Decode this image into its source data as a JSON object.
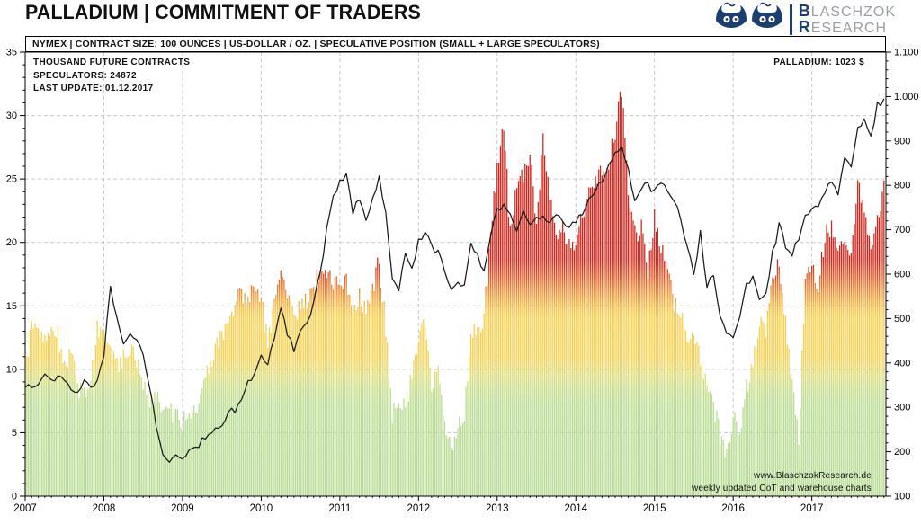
{
  "title": "PALLADIUM | COMMITMENT OF TRADERS",
  "logo": {
    "line1_initial": "B",
    "line1_rest": "LASCHZOK",
    "line2_initial": "R",
    "line2_rest": "ESEARCH"
  },
  "subheader": "NYMEX | CONTRACT SIZE: 100 OUNCES | US-DOLLAR / OZ. | SPECULATIVE POSITION (SMALL + LARGE SPECULATORS)",
  "annotations": {
    "units_label": "THOUSAND FUTURE CONTRACTS",
    "speculators_label": "SPECULATORS: 24872",
    "last_update_label": "LAST UPDATE: 01.12.2017",
    "price_label": "PALLADIUM: 1023 $",
    "website": "www.BlaschzokResearch.de",
    "update_note": "weekly updated CoT and warehouse charts"
  },
  "chart_data": {
    "type": "bar+line combo (weekly CoT chart, values below are approximate monthly readings Jan 2007 - Dec 2017)",
    "title": "PALLADIUM | COMMITMENT OF TRADERS",
    "x_range": [
      "2007-01",
      "2017-12"
    ],
    "x_tick_years": [
      "2007",
      "2008",
      "2009",
      "2010",
      "2011",
      "2012",
      "2013",
      "2014",
      "2015",
      "2016",
      "2017"
    ],
    "left_axis": {
      "label": "THOUSAND FUTURE CONTRACTS",
      "min": 0,
      "max": 35,
      "major_ticks": [
        0,
        5,
        10,
        15,
        20,
        25,
        30,
        35
      ]
    },
    "right_axis": {
      "label": "US-DOLLAR / OZ.",
      "min": 100,
      "max": 1100,
      "tick_labels": [
        "100",
        "200",
        "300",
        "400",
        "500",
        "600",
        "700",
        "800",
        "900",
        "1.000",
        "1.100"
      ]
    },
    "grid": {
      "horizontal_every": 5,
      "vertical": "yearly",
      "style": "dashed"
    },
    "legend_position": "none",
    "latest": {
      "speculators_contracts": 24872,
      "palladium_usd": 1023
    },
    "series": [
      {
        "name": "Speculative position (small + large speculators)",
        "type": "bar",
        "unit": "thousand future contracts",
        "monthly_values": [
          9.0,
          13.8,
          13.2,
          12.4,
          13.4,
          12.6,
          10.2,
          11.4,
          8.8,
          7.8,
          9.5,
          13.2,
          13.6,
          12.2,
          10.4,
          10.8,
          11.8,
          10.4,
          9.2,
          7.6,
          8.4,
          7.0,
          6.4,
          6.8,
          5.8,
          6.4,
          7.0,
          8.2,
          10.0,
          11.6,
          12.8,
          13.6,
          15.4,
          15.8,
          15.6,
          16.0,
          15.2,
          12.2,
          15.0,
          18.0,
          16.2,
          14.4,
          14.8,
          15.4,
          16.4,
          17.8,
          17.4,
          17.0,
          16.6,
          17.2,
          14.8,
          15.6,
          14.2,
          16.0,
          18.6,
          13.2,
          6.4,
          7.6,
          6.8,
          9.6,
          12.8,
          13.4,
          8.8,
          10.2,
          5.4,
          3.6,
          5.4,
          6.6,
          13.0,
          12.6,
          14.2,
          20.4,
          26.0,
          29.4,
          20.6,
          24.4,
          25.2,
          26.8,
          21.4,
          28.2,
          23.6,
          20.2,
          21.4,
          19.6,
          20.4,
          22.4,
          24.0,
          24.6,
          25.4,
          26.4,
          28.8,
          32.0,
          23.8,
          20.6,
          21.2,
          17.6,
          22.0,
          19.4,
          17.8,
          15.0,
          14.4,
          12.4,
          13.0,
          10.6,
          9.2,
          7.4,
          4.6,
          3.6,
          6.4,
          4.4,
          8.6,
          10.4,
          14.0,
          13.2,
          16.8,
          18.8,
          13.4,
          9.0,
          4.8,
          16.6,
          18.2,
          16.6,
          20.6,
          21.4,
          18.8,
          20.2,
          18.6,
          25.2,
          22.4,
          19.4,
          21.6,
          24.872
        ]
      },
      {
        "name": "Palladium price",
        "type": "line",
        "unit": "USD/oz",
        "monthly_values": [
          345,
          352,
          356,
          368,
          362,
          370,
          366,
          332,
          342,
          360,
          352,
          358,
          420,
          575,
          500,
          445,
          462,
          452,
          420,
          340,
          260,
          200,
          178,
          188,
          192,
          200,
          208,
          228,
          232,
          246,
          256,
          288,
          296,
          322,
          352,
          378,
          418,
          402,
          452,
          530,
          462,
          432,
          472,
          492,
          538,
          600,
          700,
          772,
          805,
          828,
          736,
          775,
          722,
          768,
          822,
          740,
          598,
          570,
          640,
          615,
          672,
          700,
          658,
          652,
          598,
          560,
          575,
          580,
          668,
          640,
          608,
          688,
          748,
          752,
          738,
          692,
          742,
          705,
          726,
          736,
          718,
          738,
          720,
          710,
          718,
          736,
          772,
          790,
          812,
          842,
          868,
          880,
          832,
          766,
          800,
          798,
          785,
          812,
          785,
          760,
          730,
          660,
          600,
          690,
          570,
          600,
          500,
          470,
          455,
          510,
          580,
          595,
          535,
          555,
          645,
          708,
          665,
          648,
          680,
          730,
          755,
          745,
          790,
          800,
          778,
          865,
          835,
          926,
          950,
          906,
          980,
          995
        ]
      }
    ],
    "colors": {
      "line": "#1a1a1a",
      "grid": "#c9c9c9",
      "frame": "#000000",
      "logo_blue": "#1d3e70",
      "logo_gray": "#9aa0a6",
      "bar_red": "#c9271e",
      "bar_orange": "#eb9737",
      "bar_yellow": "#f6d04e",
      "bar_green": "#b7da92"
    },
    "bar_color_scale": [
      {
        "offset": 0.0,
        "color": "#c9271e"
      },
      {
        "offset": 0.468,
        "color": "#c9271e"
      },
      {
        "offset": 0.507,
        "color": "#dc5c26"
      },
      {
        "offset": 0.545,
        "color": "#eb9737"
      },
      {
        "offset": 0.578,
        "color": "#f3c247"
      },
      {
        "offset": 0.6,
        "color": "#f6d04e"
      },
      {
        "offset": 0.685,
        "color": "#f4d153"
      },
      {
        "offset": 0.727,
        "color": "#dedc77"
      },
      {
        "offset": 0.765,
        "color": "#c2dd8d"
      },
      {
        "offset": 0.8,
        "color": "#b9db92"
      },
      {
        "offset": 1.0,
        "color": "#b6da92"
      }
    ]
  }
}
